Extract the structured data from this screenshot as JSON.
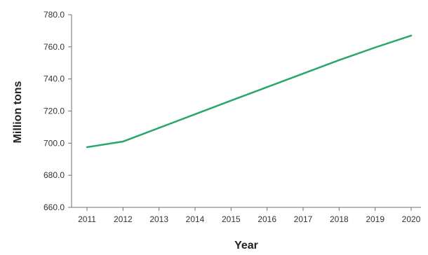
{
  "chart_data": {
    "type": "line",
    "title": "",
    "xlabel": "Year",
    "ylabel": "Million tons",
    "x": [
      "2011",
      "2012",
      "2013",
      "2014",
      "2015",
      "2016",
      "2017",
      "2018",
      "2019",
      "2020"
    ],
    "series": [
      {
        "values": [
          697.5,
          701.0,
          709.5,
          718.0,
          726.5,
          734.9,
          743.3,
          751.7,
          759.6,
          767.0
        ]
      }
    ],
    "y_ticks": [
      "660.0",
      "680.0",
      "700.0",
      "720.0",
      "740.0",
      "760.0",
      "780.0"
    ],
    "ylim": [
      660,
      780
    ],
    "grid": false,
    "legend": "none",
    "colors": {
      "series_line": "#2aa66a",
      "axis": "#6f6f6f",
      "text": "#333333"
    }
  }
}
